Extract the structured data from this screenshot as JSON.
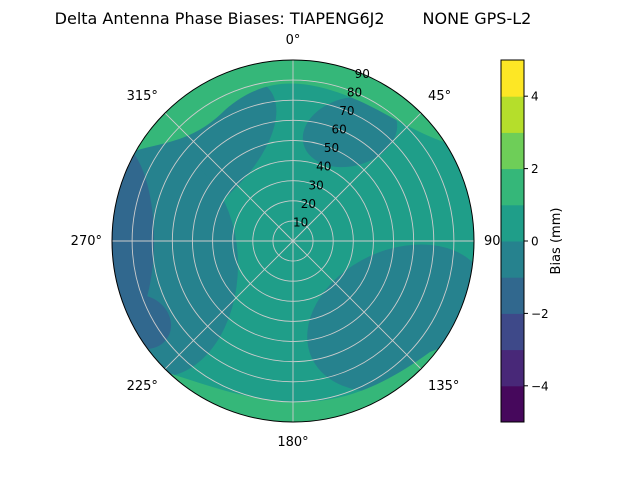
{
  "header": {
    "title_left": "Delta Antenna Phase Biases: TIAPENG6J2",
    "title_right": "NONE GPS-L2"
  },
  "chart_data": {
    "type": "heatmap",
    "subtype": "polar_filled_contour_skyplot",
    "title": "Delta Antenna Phase Biases: TIAPENG6J2     NONE GPS-L2",
    "azimuth_ticks": [
      {
        "deg": 0,
        "label": "0°"
      },
      {
        "deg": 45,
        "label": "45°"
      },
      {
        "deg": 90,
        "label": "90"
      },
      {
        "deg": 135,
        "label": "135°"
      },
      {
        "deg": 180,
        "label": "180°"
      },
      {
        "deg": 225,
        "label": "225°"
      },
      {
        "deg": 270,
        "label": "270°"
      },
      {
        "deg": 315,
        "label": "315°"
      }
    ],
    "radial_ticks": [
      {
        "value": 10,
        "label": "10"
      },
      {
        "value": 20,
        "label": "20"
      },
      {
        "value": 30,
        "label": "30"
      },
      {
        "value": 40,
        "label": "40"
      },
      {
        "value": 50,
        "label": "50"
      },
      {
        "value": 60,
        "label": "60"
      },
      {
        "value": 70,
        "label": "70"
      },
      {
        "value": 80,
        "label": "80"
      },
      {
        "value": 90,
        "label": "90"
      }
    ],
    "radial_max": 90,
    "radial_label_angle_deg": 22.5,
    "grid": true,
    "grid_color": "#cccccc",
    "outline_color": "#000000",
    "colormap": "viridis",
    "levels": [
      {
        "from": -5,
        "to": -4,
        "color": "#46085c"
      },
      {
        "from": -4,
        "to": -3,
        "color": "#482878"
      },
      {
        "from": -3,
        "to": -2,
        "color": "#3e4989"
      },
      {
        "from": -2,
        "to": -1,
        "color": "#31688e"
      },
      {
        "from": -1,
        "to": 0,
        "color": "#26828e"
      },
      {
        "from": 0,
        "to": 1,
        "color": "#1f9e89"
      },
      {
        "from": 1,
        "to": 2,
        "color": "#35b779"
      },
      {
        "from": 2,
        "to": 3,
        "color": "#6ece58"
      },
      {
        "from": 3,
        "to": 4,
        "color": "#b5de2b"
      },
      {
        "from": 4,
        "to": 5,
        "color": "#fde725"
      }
    ],
    "colorbar": {
      "label": "Bias (mm)",
      "min": -5,
      "max": 5,
      "ticks": [
        {
          "value": 4,
          "label": "4"
        },
        {
          "value": 2,
          "label": "2"
        },
        {
          "value": 0,
          "label": "0"
        },
        {
          "value": -2,
          "label": "−2"
        },
        {
          "value": -4,
          "label": "−4"
        }
      ]
    },
    "regions": [
      {
        "name": "background",
        "approx_bias_mm": 0.5,
        "note": "dominant teal area, 0 to 1 mm"
      },
      {
        "name": "upper-left-band",
        "approx_bias_mm": -0.5,
        "note": "-1 to 0 mm band from left edge toward top"
      },
      {
        "name": "left-middle",
        "approx_bias_mm": -0.5,
        "note": "-1 to 0 mm region over left half"
      },
      {
        "name": "lower-right",
        "approx_bias_mm": -0.5,
        "note": "-1 to 0 mm region near 135° edge"
      },
      {
        "name": "top-center-patch",
        "approx_bias_mm": -0.5,
        "note": "-1 to 0 mm tongue below top edge"
      },
      {
        "name": "left-edge-270",
        "approx_bias_mm": -1.5,
        "note": "-2 to -1 mm crescent at 270° horizon"
      },
      {
        "name": "left-edge-lower",
        "approx_bias_mm": -1.5,
        "note": "-2 to -1 mm blob lower-left horizon"
      },
      {
        "name": "top-edge-arc",
        "approx_bias_mm": 1.5,
        "note": "1 to 2 mm arc along northern horizon"
      },
      {
        "name": "bottom-edge-arc",
        "approx_bias_mm": 1.5,
        "note": "1 to 2 mm arc along southern horizon near 180°"
      }
    ]
  }
}
